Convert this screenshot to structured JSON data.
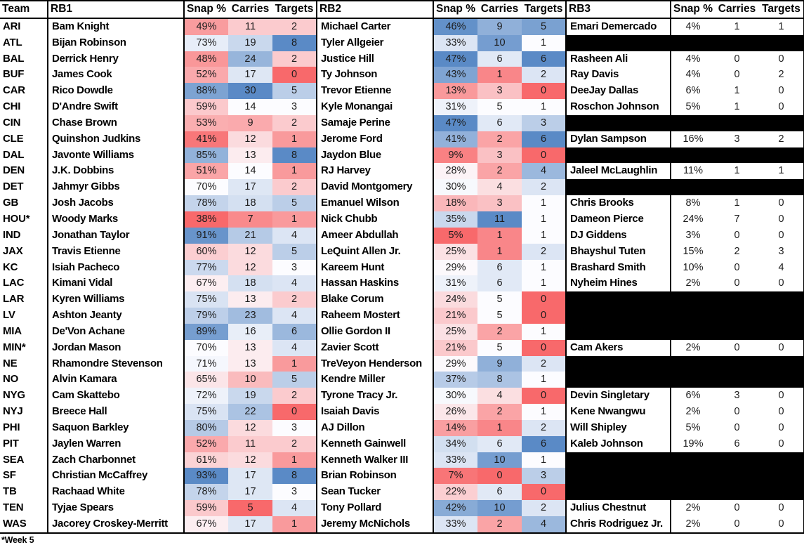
{
  "table": {
    "headers": {
      "team": "Team",
      "rb1": "RB1",
      "rb2": "RB2",
      "rb3": "RB3",
      "snap": "Snap %",
      "carries": "Carries",
      "targets": "Targets"
    },
    "footnote": "*Week 5",
    "rows": [
      {
        "team": "ARI",
        "rb1": {
          "name": "Bam Knight",
          "snap": "49%",
          "carries": 11,
          "targets": 2
        },
        "rb2": {
          "name": "Michael Carter",
          "snap": "46%",
          "carries": 9,
          "targets": 5
        },
        "rb3": {
          "name": "Emari Demercado",
          "snap": "4%",
          "carries": 1,
          "targets": 1
        }
      },
      {
        "team": "ATL",
        "rb1": {
          "name": "Bijan Robinson",
          "snap": "73%",
          "carries": 19,
          "targets": 8
        },
        "rb2": {
          "name": "Tyler Allgeier",
          "snap": "33%",
          "carries": 10,
          "targets": 1
        },
        "rb3": null
      },
      {
        "team": "BAL",
        "rb1": {
          "name": "Derrick Henry",
          "snap": "48%",
          "carries": 24,
          "targets": 2
        },
        "rb2": {
          "name": "Justice Hill",
          "snap": "47%",
          "carries": 6,
          "targets": 6
        },
        "rb3": {
          "name": "Rasheen Ali",
          "snap": "4%",
          "carries": 0,
          "targets": 0
        }
      },
      {
        "team": "BUF",
        "rb1": {
          "name": "James Cook",
          "snap": "52%",
          "carries": 17,
          "targets": 0
        },
        "rb2": {
          "name": "Ty Johnson",
          "snap": "43%",
          "carries": 1,
          "targets": 2
        },
        "rb3": {
          "name": "Ray Davis",
          "snap": "4%",
          "carries": 0,
          "targets": 2
        }
      },
      {
        "team": "CAR",
        "rb1": {
          "name": "Rico Dowdle",
          "snap": "88%",
          "carries": 30,
          "targets": 5
        },
        "rb2": {
          "name": "Trevor Etienne",
          "snap": "13%",
          "carries": 3,
          "targets": 0
        },
        "rb3": {
          "name": "DeeJay Dallas",
          "snap": "6%",
          "carries": 1,
          "targets": 0
        }
      },
      {
        "team": "CHI",
        "rb1": {
          "name": "D'Andre Swift",
          "snap": "59%",
          "carries": 14,
          "targets": 3
        },
        "rb2": {
          "name": "Kyle Monangai",
          "snap": "31%",
          "carries": 5,
          "targets": 1
        },
        "rb3": {
          "name": "Roschon Johnson",
          "snap": "5%",
          "carries": 1,
          "targets": 0
        }
      },
      {
        "team": "CIN",
        "rb1": {
          "name": "Chase Brown",
          "snap": "53%",
          "carries": 9,
          "targets": 2
        },
        "rb2": {
          "name": "Samaje Perine",
          "snap": "47%",
          "carries": 6,
          "targets": 3
        },
        "rb3": null
      },
      {
        "team": "CLE",
        "rb1": {
          "name": "Quinshon Judkins",
          "snap": "41%",
          "carries": 12,
          "targets": 1
        },
        "rb2": {
          "name": "Jerome Ford",
          "snap": "41%",
          "carries": 2,
          "targets": 6
        },
        "rb3": {
          "name": "Dylan Sampson",
          "snap": "16%",
          "carries": 3,
          "targets": 2
        }
      },
      {
        "team": "DAL",
        "rb1": {
          "name": "Javonte Williams",
          "snap": "85%",
          "carries": 13,
          "targets": 8
        },
        "rb2": {
          "name": "Jaydon Blue",
          "snap": "9%",
          "carries": 3,
          "targets": 0
        },
        "rb3": null
      },
      {
        "team": "DEN",
        "rb1": {
          "name": "J.K. Dobbins",
          "snap": "51%",
          "carries": 14,
          "targets": 1
        },
        "rb2": {
          "name": "RJ Harvey",
          "snap": "28%",
          "carries": 2,
          "targets": 4
        },
        "rb3": {
          "name": "Jaleel McLaughlin",
          "snap": "11%",
          "carries": 1,
          "targets": 1
        }
      },
      {
        "team": "DET",
        "rb1": {
          "name": "Jahmyr Gibbs",
          "snap": "70%",
          "carries": 17,
          "targets": 2
        },
        "rb2": {
          "name": "David Montgomery",
          "snap": "30%",
          "carries": 4,
          "targets": 2
        },
        "rb3": null
      },
      {
        "team": "GB",
        "rb1": {
          "name": "Josh Jacobs",
          "snap": "78%",
          "carries": 18,
          "targets": 5
        },
        "rb2": {
          "name": "Emanuel Wilson",
          "snap": "18%",
          "carries": 3,
          "targets": 1
        },
        "rb3": {
          "name": "Chris Brooks",
          "snap": "8%",
          "carries": 1,
          "targets": 0
        }
      },
      {
        "team": "HOU*",
        "rb1": {
          "name": "Woody Marks",
          "snap": "38%",
          "carries": 7,
          "targets": 1
        },
        "rb2": {
          "name": "Nick Chubb",
          "snap": "35%",
          "carries": 11,
          "targets": 1
        },
        "rb3": {
          "name": "Dameon Pierce",
          "snap": "24%",
          "carries": 7,
          "targets": 0
        }
      },
      {
        "team": "IND",
        "rb1": {
          "name": "Jonathan Taylor",
          "snap": "91%",
          "carries": 21,
          "targets": 4
        },
        "rb2": {
          "name": "Ameer Abdullah",
          "snap": "5%",
          "carries": 1,
          "targets": 1
        },
        "rb3": {
          "name": "DJ Giddens",
          "snap": "3%",
          "carries": 0,
          "targets": 0
        }
      },
      {
        "team": "JAX",
        "rb1": {
          "name": "Travis Etienne",
          "snap": "60%",
          "carries": 12,
          "targets": 5
        },
        "rb2": {
          "name": "LeQuint Allen Jr.",
          "snap": "25%",
          "carries": 1,
          "targets": 2
        },
        "rb3": {
          "name": "Bhayshul Tuten",
          "snap": "15%",
          "carries": 2,
          "targets": 3
        }
      },
      {
        "team": "KC",
        "rb1": {
          "name": "Isiah Pacheco",
          "snap": "77%",
          "carries": 12,
          "targets": 3
        },
        "rb2": {
          "name": "Kareem Hunt",
          "snap": "29%",
          "carries": 6,
          "targets": 1
        },
        "rb3": {
          "name": "Brashard Smith",
          "snap": "10%",
          "carries": 0,
          "targets": 4
        }
      },
      {
        "team": "LAC",
        "rb1": {
          "name": "Kimani Vidal",
          "snap": "67%",
          "carries": 18,
          "targets": 4
        },
        "rb2": {
          "name": "Hassan Haskins",
          "snap": "31%",
          "carries": 6,
          "targets": 1
        },
        "rb3": {
          "name": "Nyheim Hines",
          "snap": "2%",
          "carries": 0,
          "targets": 0
        }
      },
      {
        "team": "LAR",
        "rb1": {
          "name": "Kyren Williams",
          "snap": "75%",
          "carries": 13,
          "targets": 2
        },
        "rb2": {
          "name": "Blake Corum",
          "snap": "24%",
          "carries": 5,
          "targets": 0
        },
        "rb3": null
      },
      {
        "team": "LV",
        "rb1": {
          "name": "Ashton Jeanty",
          "snap": "79%",
          "carries": 23,
          "targets": 4
        },
        "rb2": {
          "name": "Raheem Mostert",
          "snap": "21%",
          "carries": 5,
          "targets": 0
        },
        "rb3": null
      },
      {
        "team": "MIA",
        "rb1": {
          "name": "De'Von Achane",
          "snap": "89%",
          "carries": 16,
          "targets": 6
        },
        "rb2": {
          "name": "Ollie Gordon II",
          "snap": "25%",
          "carries": 2,
          "targets": 1
        },
        "rb3": null
      },
      {
        "team": "MIN*",
        "rb1": {
          "name": "Jordan Mason",
          "snap": "70%",
          "carries": 13,
          "targets": 4
        },
        "rb2": {
          "name": "Zavier Scott",
          "snap": "21%",
          "carries": 5,
          "targets": 0
        },
        "rb3": {
          "name": "Cam Akers",
          "snap": "2%",
          "carries": 0,
          "targets": 0
        }
      },
      {
        "team": "NE",
        "rb1": {
          "name": "Rhamondre Stevenson",
          "snap": "71%",
          "carries": 13,
          "targets": 1
        },
        "rb2": {
          "name": "TreVeyon Henderson",
          "snap": "29%",
          "carries": 9,
          "targets": 2
        },
        "rb3": null
      },
      {
        "team": "NO",
        "rb1": {
          "name": "Alvin Kamara",
          "snap": "65%",
          "carries": 10,
          "targets": 5
        },
        "rb2": {
          "name": "Kendre Miller",
          "snap": "37%",
          "carries": 8,
          "targets": 1
        },
        "rb3": null
      },
      {
        "team": "NYG",
        "rb1": {
          "name": "Cam Skattebo",
          "snap": "72%",
          "carries": 19,
          "targets": 2
        },
        "rb2": {
          "name": "Tyrone Tracy Jr.",
          "snap": "30%",
          "carries": 4,
          "targets": 0
        },
        "rb3": {
          "name": "Devin Singletary",
          "snap": "6%",
          "carries": 3,
          "targets": 0
        }
      },
      {
        "team": "NYJ",
        "rb1": {
          "name": "Breece Hall",
          "snap": "75%",
          "carries": 22,
          "targets": 0
        },
        "rb2": {
          "name": "Isaiah Davis",
          "snap": "26%",
          "carries": 2,
          "targets": 1
        },
        "rb3": {
          "name": "Kene Nwangwu",
          "snap": "2%",
          "carries": 0,
          "targets": 0
        }
      },
      {
        "team": "PHI",
        "rb1": {
          "name": "Saquon Barkley",
          "snap": "80%",
          "carries": 12,
          "targets": 3
        },
        "rb2": {
          "name": "AJ Dillon",
          "snap": "14%",
          "carries": 1,
          "targets": 2
        },
        "rb3": {
          "name": "Will Shipley",
          "snap": "5%",
          "carries": 0,
          "targets": 0
        }
      },
      {
        "team": "PIT",
        "rb1": {
          "name": "Jaylen Warren",
          "snap": "52%",
          "carries": 11,
          "targets": 2
        },
        "rb2": {
          "name": "Kenneth Gainwell",
          "snap": "34%",
          "carries": 6,
          "targets": 6
        },
        "rb3": {
          "name": "Kaleb Johnson",
          "snap": "19%",
          "carries": 6,
          "targets": 0
        }
      },
      {
        "team": "SEA",
        "rb1": {
          "name": "Zach Charbonnet",
          "snap": "61%",
          "carries": 12,
          "targets": 1
        },
        "rb2": {
          "name": "Kenneth Walker III",
          "snap": "33%",
          "carries": 10,
          "targets": 1
        },
        "rb3": null
      },
      {
        "team": "SF",
        "rb1": {
          "name": "Christian McCaffrey",
          "snap": "93%",
          "carries": 17,
          "targets": 8
        },
        "rb2": {
          "name": "Brian Robinson",
          "snap": "7%",
          "carries": 0,
          "targets": 3
        },
        "rb3": null
      },
      {
        "team": "TB",
        "rb1": {
          "name": "Rachaad White",
          "snap": "78%",
          "carries": 17,
          "targets": 3
        },
        "rb2": {
          "name": "Sean Tucker",
          "snap": "22%",
          "carries": 6,
          "targets": 0
        },
        "rb3": null
      },
      {
        "team": "TEN",
        "rb1": {
          "name": "Tyjae Spears",
          "snap": "59%",
          "carries": 5,
          "targets": 4
        },
        "rb2": {
          "name": "Tony Pollard",
          "snap": "42%",
          "carries": 10,
          "targets": 2
        },
        "rb3": {
          "name": "Julius Chestnut",
          "snap": "2%",
          "carries": 0,
          "targets": 0
        }
      },
      {
        "team": "WAS",
        "rb1": {
          "name": "Jacorey Croskey-Merritt",
          "snap": "67%",
          "carries": 17,
          "targets": 1
        },
        "rb2": {
          "name": "Jeremy McNichols",
          "snap": "33%",
          "carries": 2,
          "targets": 4
        },
        "rb3": {
          "name": "Chris Rodriguez Jr.",
          "snap": "2%",
          "carries": 0,
          "targets": 0
        }
      }
    ]
  },
  "colors": {
    "scale_low": "#F8696B",
    "scale_mid": "#FCFCFF",
    "scale_high": "#5A8AC6",
    "missing_fill": "#000000",
    "grid_border": "#000000",
    "text": "#000000"
  }
}
